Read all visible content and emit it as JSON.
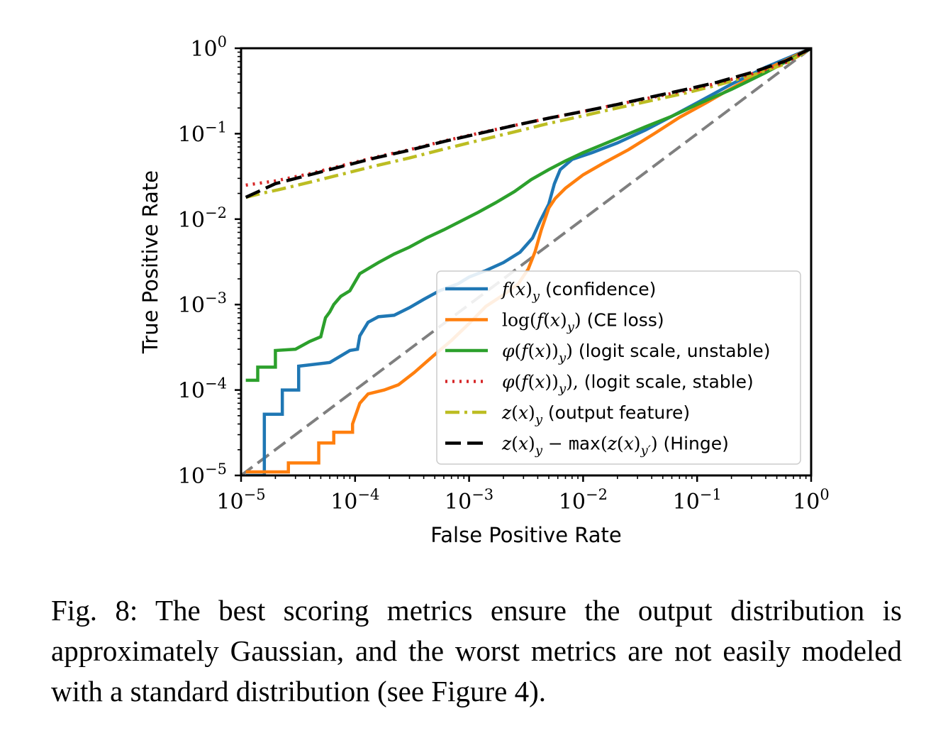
{
  "caption": "Fig. 8: The best scoring metrics ensure the output distribution is approximately Gaussian, and the worst metrics are not easily modeled with a standard distribution (see Figure 4).",
  "chart_data": {
    "type": "line",
    "title": "",
    "xlabel": "False Positive Rate",
    "ylabel": "True Positive Rate",
    "xscale": "log",
    "yscale": "log",
    "xlim": [
      1e-05,
      1
    ],
    "ylim": [
      1e-05,
      1
    ],
    "x_tick_labels": [
      {
        "base": "10",
        "exp": "−5"
      },
      {
        "base": "10",
        "exp": "−4"
      },
      {
        "base": "10",
        "exp": "−3"
      },
      {
        "base": "10",
        "exp": "−2"
      },
      {
        "base": "10",
        "exp": "−1"
      },
      {
        "base": "10",
        "exp": "0"
      }
    ],
    "y_tick_labels": [
      {
        "base": "10",
        "exp": "−5"
      },
      {
        "base": "10",
        "exp": "−4"
      },
      {
        "base": "10",
        "exp": "−3"
      },
      {
        "base": "10",
        "exp": "−2"
      },
      {
        "base": "10",
        "exp": "−1"
      },
      {
        "base": "10",
        "exp": "0"
      }
    ],
    "grid": false,
    "legend_position": "lower-right",
    "reference_line": {
      "style": "dashed",
      "color": "#7f7f7f",
      "x": [
        1e-05,
        1
      ],
      "y": [
        1e-05,
        1
      ]
    },
    "series": [
      {
        "name_parts": [
          [
            "m",
            "f"
          ],
          [
            "s",
            "("
          ],
          [
            "m",
            "x"
          ],
          [
            "s",
            ")"
          ],
          [
            "sub",
            "y"
          ],
          [
            "t",
            " (confidence)"
          ]
        ],
        "color": "#1f77b4",
        "dash": "solid",
        "step": true,
        "x": [
          1.1e-05,
          1.6e-05,
          1.6e-05,
          2.3e-05,
          2.3e-05,
          3.2e-05,
          3.2e-05,
          6e-05,
          9e-05,
          0.000105,
          0.00011,
          0.00013,
          0.00016,
          0.00022,
          0.0003,
          0.0004,
          0.00055,
          0.0008,
          0.001,
          0.0014,
          0.002,
          0.0028,
          0.0036,
          0.0042,
          0.005,
          0.0056,
          0.0063,
          0.008,
          0.012,
          0.02,
          0.035,
          0.06,
          0.1,
          0.2,
          0.4,
          1
        ],
        "y": [
          1e-05,
          1e-05,
          5.2e-05,
          5.2e-05,
          0.0001,
          0.0001,
          0.00019,
          0.00021,
          0.00029,
          0.0003,
          0.00043,
          0.00062,
          0.00072,
          0.00075,
          0.00092,
          0.00115,
          0.00145,
          0.00175,
          0.0021,
          0.0025,
          0.0031,
          0.0041,
          0.006,
          0.0095,
          0.015,
          0.026,
          0.038,
          0.05,
          0.06,
          0.078,
          0.11,
          0.16,
          0.23,
          0.38,
          0.6,
          1
        ]
      },
      {
        "name_parts": [
          [
            "s",
            "log("
          ],
          [
            "m",
            "f"
          ],
          [
            "s",
            "("
          ],
          [
            "m",
            "x"
          ],
          [
            "s",
            ")"
          ],
          [
            "sub",
            "y"
          ],
          [
            "s",
            ")"
          ],
          [
            "t",
            " (CE loss)"
          ]
        ],
        "color": "#ff7f0e",
        "dash": "solid",
        "step": true,
        "x": [
          1.1e-05,
          2.6e-05,
          2.6e-05,
          4.8e-05,
          4.8e-05,
          6.5e-05,
          6.5e-05,
          9.5e-05,
          9.5e-05,
          0.00011,
          0.00013,
          0.00018,
          0.00024,
          0.00033,
          0.0005,
          0.0007,
          0.001,
          0.0014,
          0.002,
          0.0027,
          0.0033,
          0.0038,
          0.0043,
          0.005,
          0.0057,
          0.007,
          0.01,
          0.015,
          0.025,
          0.043,
          0.07,
          0.12,
          0.2,
          0.4,
          1
        ],
        "y": [
          1.1e-05,
          1.1e-05,
          1.4e-05,
          1.4e-05,
          2.4e-05,
          2.4e-05,
          3.2e-05,
          3.2e-05,
          4e-05,
          7e-05,
          9e-05,
          0.0001,
          0.000115,
          0.00016,
          0.00026,
          0.00038,
          0.0006,
          0.00095,
          0.0013,
          0.00175,
          0.0026,
          0.0042,
          0.0075,
          0.0135,
          0.0175,
          0.023,
          0.033,
          0.045,
          0.065,
          0.102,
          0.155,
          0.23,
          0.34,
          0.56,
          1
        ]
      },
      {
        "name_parts": [
          [
            "m",
            "φ"
          ],
          [
            "s",
            "("
          ],
          [
            "m",
            "f"
          ],
          [
            "s",
            "("
          ],
          [
            "m",
            "x"
          ],
          [
            "s",
            "))"
          ],
          [
            "sub",
            "y"
          ],
          [
            "s",
            ")"
          ],
          [
            "t",
            " (logit scale, unstable)"
          ]
        ],
        "color": "#2ca02c",
        "dash": "solid",
        "step": true,
        "x": [
          1.1e-05,
          1.4e-05,
          1.4e-05,
          2e-05,
          2e-05,
          3e-05,
          4e-05,
          5e-05,
          5.2e-05,
          5.5e-05,
          6e-05,
          6.5e-05,
          7.5e-05,
          9e-05,
          0.00011,
          0.00016,
          0.00022,
          0.0003,
          0.00042,
          0.0006,
          0.00085,
          0.0012,
          0.0017,
          0.0025,
          0.0035,
          0.005,
          0.007,
          0.01,
          0.015,
          0.023,
          0.035,
          0.06,
          0.1,
          0.2,
          0.4,
          1
        ],
        "y": [
          0.00013,
          0.00013,
          0.000185,
          0.000185,
          0.00029,
          0.0003,
          0.00037,
          0.00042,
          0.00052,
          0.0007,
          0.00082,
          0.001,
          0.00125,
          0.00145,
          0.0023,
          0.0031,
          0.0039,
          0.0047,
          0.006,
          0.0075,
          0.0095,
          0.012,
          0.0155,
          0.021,
          0.029,
          0.038,
          0.048,
          0.06,
          0.075,
          0.095,
          0.12,
          0.16,
          0.22,
          0.33,
          0.52,
          1
        ]
      },
      {
        "name_parts": [
          [
            "m",
            "φ"
          ],
          [
            "s",
            "("
          ],
          [
            "m",
            "f"
          ],
          [
            "s",
            "("
          ],
          [
            "m",
            "x"
          ],
          [
            "s",
            "))"
          ],
          [
            "sub",
            "y"
          ],
          [
            "s",
            "),"
          ],
          [
            "t",
            " (logit scale, stable)"
          ]
        ],
        "color": "#d62728",
        "dash": "dotted",
        "step": false,
        "x": [
          1.1e-05,
          2e-05,
          4e-05,
          8e-05,
          0.00015,
          0.0003,
          0.0006,
          0.0012,
          0.0025,
          0.005,
          0.01,
          0.02,
          0.04,
          0.08,
          0.15,
          0.3,
          0.6,
          1
        ],
        "y": [
          0.025,
          0.028,
          0.034,
          0.043,
          0.053,
          0.065,
          0.082,
          0.101,
          0.125,
          0.152,
          0.182,
          0.22,
          0.265,
          0.32,
          0.39,
          0.5,
          0.68,
          1
        ]
      },
      {
        "name_parts": [
          [
            "m",
            "z"
          ],
          [
            "s",
            "("
          ],
          [
            "m",
            "x"
          ],
          [
            "s",
            ")"
          ],
          [
            "sub",
            "y"
          ],
          [
            "t",
            " (output feature)"
          ]
        ],
        "color": "#bcbd22",
        "dash": "dashdot",
        "step": false,
        "x": [
          1.1e-05,
          1.5e-05,
          2.1e-05,
          4e-05,
          8e-05,
          0.00015,
          0.0003,
          0.0006,
          0.0012,
          0.0025,
          0.005,
          0.01,
          0.02,
          0.04,
          0.08,
          0.15,
          0.3,
          0.6,
          1
        ],
        "y": [
          0.018,
          0.02,
          0.022,
          0.027,
          0.034,
          0.042,
          0.052,
          0.066,
          0.083,
          0.105,
          0.132,
          0.162,
          0.2,
          0.245,
          0.3,
          0.37,
          0.48,
          0.66,
          1
        ]
      },
      {
        "name_parts": [
          [
            "m",
            "z"
          ],
          [
            "s",
            "("
          ],
          [
            "m",
            "x"
          ],
          [
            "s",
            ")"
          ],
          [
            "sub",
            "y"
          ],
          [
            "s",
            " − "
          ],
          [
            "mono",
            "max"
          ],
          [
            "s",
            "("
          ],
          [
            "m",
            "z"
          ],
          [
            "s",
            "("
          ],
          [
            "m",
            "x"
          ],
          [
            "s",
            ")"
          ],
          [
            "sub",
            "y′"
          ],
          [
            "s",
            ")"
          ],
          [
            "t",
            " (Hinge)"
          ]
        ],
        "color": "#000000",
        "dash": "dashed",
        "step": false,
        "x": [
          1.1e-05,
          2e-05,
          4e-05,
          8e-05,
          0.00015,
          0.0003,
          0.0006,
          0.0012,
          0.0025,
          0.005,
          0.01,
          0.02,
          0.04,
          0.08,
          0.15,
          0.3,
          0.6,
          1
        ],
        "y": [
          0.018,
          0.026,
          0.033,
          0.042,
          0.052,
          0.064,
          0.081,
          0.1,
          0.125,
          0.152,
          0.182,
          0.22,
          0.27,
          0.33,
          0.4,
          0.52,
          0.71,
          1
        ]
      }
    ]
  }
}
